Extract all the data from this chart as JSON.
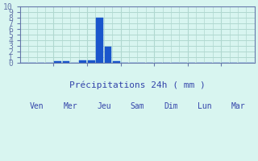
{
  "bar_labels": [
    "Ven",
    "Mer",
    "Jeu",
    "Sam",
    "Dim",
    "Lun",
    "Mar"
  ],
  "n_bars": 28,
  "values": [
    0,
    0,
    0,
    0,
    0.3,
    0.3,
    0,
    0.4,
    0.4,
    8.0,
    2.8,
    0.3,
    0,
    0,
    0,
    0,
    0,
    0,
    0,
    0,
    0,
    0,
    0,
    0,
    0,
    0,
    0,
    0
  ],
  "bar_color": "#1a56cc",
  "background_color": "#d8f5f0",
  "grid_color": "#b0d8d0",
  "axis_color": "#6677aa",
  "tick_label_color": "#3344aa",
  "xlabel": "Précipitations 24h ( mm )",
  "ylim": [
    0,
    10
  ],
  "yticks": [
    0,
    1,
    2,
    3,
    4,
    5,
    6,
    7,
    8,
    9,
    10
  ],
  "xlabel_fontsize": 8,
  "tick_fontsize": 7
}
